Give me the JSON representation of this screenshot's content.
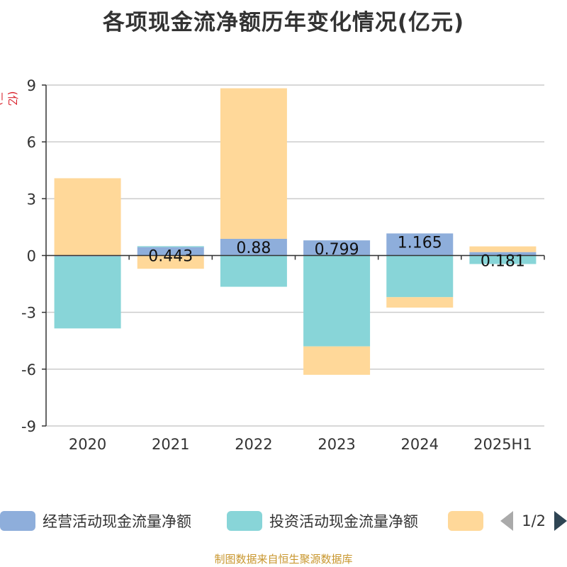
{
  "title": "各项现金流净额历年变化情况(亿元)",
  "y_unit": "(亿元)",
  "source": "制图数据来自恒生聚源数据库",
  "legend": {
    "items": [
      {
        "label": "经营活动现金流量净额",
        "color": "#8eaedb"
      },
      {
        "label": "投资活动现金流量净额",
        "color": "#88d5d8"
      },
      {
        "label": "",
        "color": "#ffd899"
      }
    ],
    "page": "1/2"
  },
  "chart_data": {
    "type": "bar",
    "stacked": true,
    "categories": [
      "2020",
      "2021",
      "2022",
      "2023",
      "2024",
      "2025H1"
    ],
    "ylim": [
      -9,
      9
    ],
    "yticks": [
      9,
      6,
      3,
      0,
      -3,
      -6,
      -9
    ],
    "grid": true,
    "legend_position": "bottom",
    "series": [
      {
        "name": "经营活动现金流量净额",
        "color": "#8eaedb",
        "values": [
          -0.05,
          0.443,
          0.88,
          0.799,
          1.165,
          0.181
        ],
        "labels": [
          "",
          "0.443",
          "0.88",
          "0.799",
          "1.165",
          "0.181"
        ]
      },
      {
        "name": "投资活动现金流量净额",
        "color": "#88d5d8",
        "values": [
          -3.8,
          0.05,
          -1.65,
          -4.8,
          -2.2,
          -0.45
        ]
      },
      {
        "color": "#ffd899",
        "values": [
          4.08,
          -0.7,
          7.95,
          -1.5,
          -0.55,
          0.3
        ]
      }
    ]
  }
}
